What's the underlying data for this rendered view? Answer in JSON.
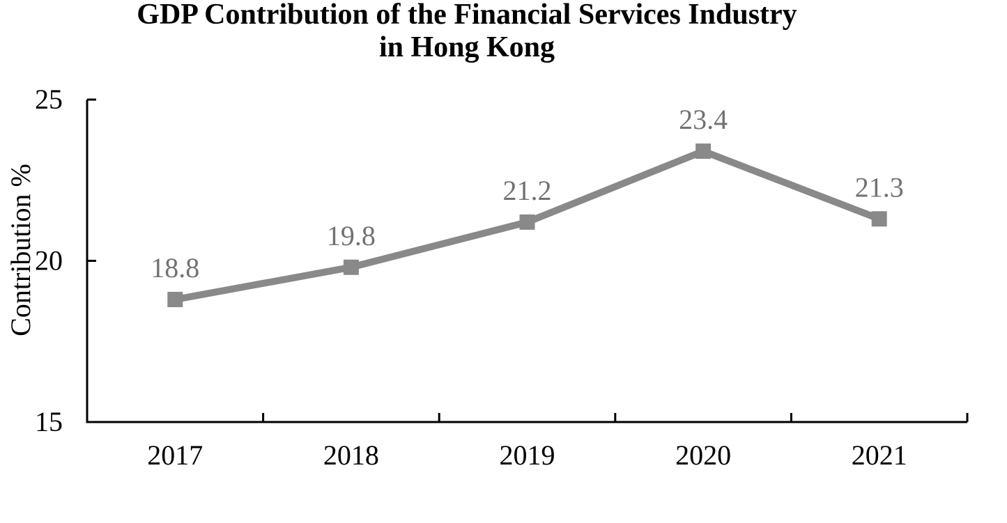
{
  "title": {
    "line1": "GDP Contribution of the Financial Services Industry",
    "line2": "in Hong Kong"
  },
  "chart_data": {
    "type": "line",
    "title": "GDP Contribution of the Financial Services Industry in Hong Kong",
    "categories": [
      "2017",
      "2018",
      "2019",
      "2020",
      "2021"
    ],
    "values": [
      18.8,
      19.8,
      21.2,
      23.4,
      21.3
    ],
    "data_labels": [
      "18.8",
      "19.8",
      "21.2",
      "23.4",
      "21.3"
    ],
    "xlabel": "",
    "ylabel": "Contribution %",
    "ylim": [
      15,
      25
    ],
    "yticks": [
      15,
      20,
      25
    ],
    "ytick_labels": [
      "15",
      "20",
      "25"
    ],
    "grid": false,
    "legend_position": "none",
    "marker": "square",
    "colors": {
      "line": "#898989",
      "marker": "#898989",
      "data_label": "#717171",
      "axis": "#000000",
      "tick_label": "#000000"
    }
  }
}
